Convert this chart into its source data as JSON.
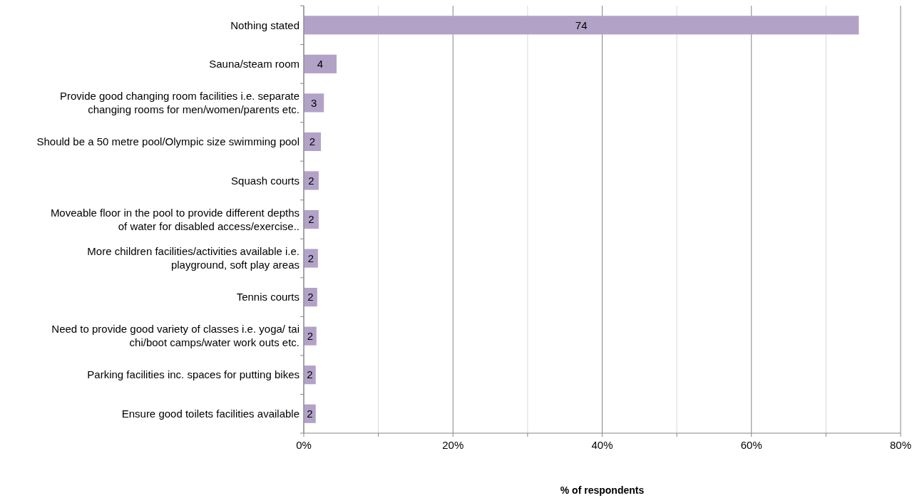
{
  "chart_data": {
    "type": "bar",
    "orientation": "horizontal",
    "xlabel": "% of respondents",
    "categories": [
      "Nothing stated",
      "Sauna/steam room",
      "Provide good changing room facilities i.e. separate changing rooms for men/women/parents etc.",
      "Should be a 50 metre pool/Olympic size swimming pool",
      "Squash courts",
      "Moveable floor in the pool to provide different depths of water for disabled access/exercise..",
      "More children facilities/activities available i.e. playground, soft play areas",
      "Tennis courts",
      "Need to provide good variety of classes i.e. yoga/ tai chi/boot camps/water work outs etc.",
      "Parking facilities inc. spaces for putting bikes",
      "Ensure good toilets facilities available"
    ],
    "values": [
      74.4,
      4.4,
      2.7,
      2.3,
      2.0,
      2.0,
      1.9,
      1.8,
      1.7,
      1.6,
      1.6
    ],
    "value_labels": [
      "74",
      "4",
      "3",
      "2",
      "2",
      "2",
      "2",
      "2",
      "2",
      "2",
      "2"
    ],
    "color": "#b3a2c7",
    "xlim": [
      0,
      80
    ],
    "xticks": [
      {
        "value": 0,
        "label": "0%"
      },
      {
        "value": 10,
        "label": null
      },
      {
        "value": 20,
        "label": "20%"
      },
      {
        "value": 30,
        "label": null
      },
      {
        "value": 40,
        "label": "40%"
      },
      {
        "value": 50,
        "label": null
      },
      {
        "value": 60,
        "label": "60%"
      },
      {
        "value": 70,
        "label": null
      },
      {
        "value": 80,
        "label": "80%"
      }
    ],
    "grid": "x"
  }
}
